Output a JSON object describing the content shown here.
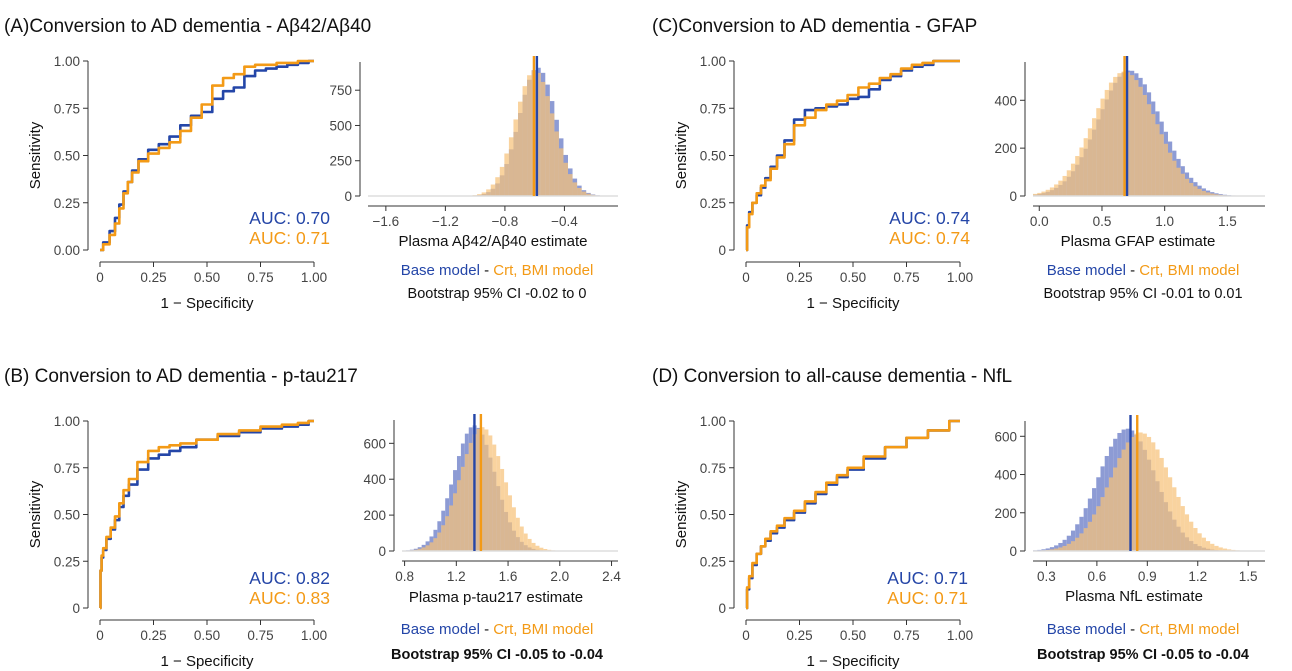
{
  "colors": {
    "base": "#2446a8",
    "crt": "#f39a16",
    "base_hist": "#8796d2",
    "crt_hist": "#f7c27a",
    "axis": "#333333"
  },
  "panels": [
    {
      "title": "(A)Conversion to AD dementia - Aβ42/Aβ40",
      "auc_base": "AUC: 0.70",
      "auc_crt": "AUC: 0.71",
      "hist_xlabel": "Plasma Aβ42/Aβ40 estimate",
      "legend_base": "Base model",
      "legend_sep": " - ",
      "legend_crt": "Crt, BMI model",
      "ci": "Bootstrap 95% CI -0.02 to 0",
      "ci_bold": false
    },
    {
      "title": "(C)Conversion to AD dementia - GFAP",
      "auc_base": "AUC: 0.74",
      "auc_crt": "AUC: 0.74",
      "hist_xlabel": "Plasma GFAP estimate",
      "legend_base": "Base model",
      "legend_sep": " - ",
      "legend_crt": "Crt, BMI model",
      "ci": "Bootstrap 95% CI -0.01 to 0.01",
      "ci_bold": false
    },
    {
      "title": "(B) Conversion to AD dementia - p-tau217",
      "auc_base": "AUC: 0.82",
      "auc_crt": "AUC: 0.83",
      "hist_xlabel": "Plasma p-tau217 estimate",
      "legend_base": "Base model",
      "legend_sep": " - ",
      "legend_crt": "Crt, BMI model",
      "ci": "Bootstrap 95% CI -0.05 to -0.04",
      "ci_bold": true
    },
    {
      "title": "(D)   Conversion to all-cause dementia - NfL",
      "auc_base": "AUC: 0.71",
      "auc_crt": "AUC: 0.71",
      "hist_xlabel": "Plasma NfL estimate",
      "legend_base": "Base model",
      "legend_sep": " - ",
      "legend_crt": "Crt, BMI model",
      "ci": "Bootstrap 95% CI -0.05 to -0.04",
      "ci_bold": true
    }
  ],
  "chart_data": [
    {
      "type": "line",
      "panel": "A",
      "title": "",
      "xlabel": "1 − Specificity",
      "ylabel": "Sensitivity",
      "xlim": [
        0,
        1
      ],
      "ylim": [
        0,
        1
      ],
      "xticks": [
        "0",
        "0.25",
        "0.50",
        "0.75",
        "1.00"
      ],
      "yticks": [
        "0.00",
        "0.25",
        "0.50",
        "0.75",
        "1.00"
      ],
      "series": [
        {
          "name": "Base model",
          "x": [
            0,
            0.03,
            0.06,
            0.08,
            0.1,
            0.12,
            0.14,
            0.16,
            0.2,
            0.25,
            0.3,
            0.35,
            0.4,
            0.45,
            0.5,
            0.55,
            0.6,
            0.65,
            0.7,
            0.75,
            0.8,
            0.85,
            0.9,
            0.95,
            1
          ],
          "y": [
            0,
            0.04,
            0.1,
            0.17,
            0.24,
            0.31,
            0.36,
            0.42,
            0.48,
            0.53,
            0.56,
            0.6,
            0.66,
            0.71,
            0.73,
            0.8,
            0.84,
            0.86,
            0.92,
            0.95,
            0.96,
            0.97,
            0.98,
            0.99,
            1
          ]
        },
        {
          "name": "Crt, BMI model",
          "x": [
            0,
            0.03,
            0.06,
            0.08,
            0.1,
            0.12,
            0.14,
            0.16,
            0.2,
            0.25,
            0.3,
            0.35,
            0.4,
            0.45,
            0.5,
            0.55,
            0.6,
            0.65,
            0.7,
            0.75,
            0.8,
            0.85,
            0.9,
            0.95,
            1
          ],
          "y": [
            0,
            0.03,
            0.08,
            0.14,
            0.22,
            0.3,
            0.36,
            0.41,
            0.47,
            0.51,
            0.54,
            0.57,
            0.63,
            0.7,
            0.77,
            0.87,
            0.91,
            0.93,
            0.97,
            0.98,
            0.98,
            0.99,
            0.99,
            1,
            1
          ]
        }
      ]
    },
    {
      "type": "histogram",
      "panel": "A",
      "title": "",
      "xlabel": "Plasma Aβ42/Aβ40 estimate",
      "xlim": [
        -1.72,
        -0.04
      ],
      "ylim": [
        0,
        950
      ],
      "xticks": [
        -1.6,
        -1.2,
        -0.8,
        -0.4
      ],
      "xtick_labels": [
        "−1.6",
        "−1.2",
        "−0.8",
        "−0.4"
      ],
      "yticks": [
        0,
        250,
        500,
        750
      ],
      "ytick_labels": [
        "0",
        "250",
        "500",
        "750"
      ],
      "series": [
        {
          "name": "Base model",
          "mean": -0.58,
          "sd": 0.125,
          "peak": 910,
          "estimate": -0.585
        },
        {
          "name": "Crt, BMI model",
          "mean": -0.6,
          "sd": 0.128,
          "peak": 890,
          "estimate": -0.605
        }
      ]
    },
    {
      "type": "line",
      "panel": "C",
      "title": "",
      "xlabel": "1 − Specificity",
      "ylabel": "Sensitivity",
      "xlim": [
        0,
        1
      ],
      "ylim": [
        0,
        1
      ],
      "xticks": [
        "0",
        "0.25",
        "0.50",
        "0.75",
        "1.00"
      ],
      "yticks": [
        "0",
        "0.25",
        "0.50",
        "0.75",
        "1.00"
      ],
      "series": [
        {
          "name": "Base model",
          "x": [
            0,
            0.01,
            0.02,
            0.04,
            0.06,
            0.08,
            0.1,
            0.13,
            0.16,
            0.2,
            0.25,
            0.3,
            0.35,
            0.4,
            0.45,
            0.5,
            0.55,
            0.6,
            0.65,
            0.7,
            0.75,
            0.8,
            0.85,
            0.9,
            1
          ],
          "y": [
            0,
            0.13,
            0.2,
            0.25,
            0.29,
            0.33,
            0.38,
            0.44,
            0.5,
            0.58,
            0.69,
            0.74,
            0.75,
            0.76,
            0.77,
            0.8,
            0.81,
            0.85,
            0.9,
            0.92,
            0.95,
            0.97,
            0.98,
            1,
            1
          ]
        },
        {
          "name": "Crt, BMI model",
          "x": [
            0,
            0.01,
            0.02,
            0.04,
            0.06,
            0.08,
            0.1,
            0.13,
            0.16,
            0.2,
            0.25,
            0.3,
            0.35,
            0.4,
            0.45,
            0.5,
            0.55,
            0.6,
            0.65,
            0.7,
            0.75,
            0.8,
            0.85,
            0.9,
            1
          ],
          "y": [
            0,
            0.12,
            0.19,
            0.25,
            0.3,
            0.34,
            0.37,
            0.43,
            0.49,
            0.56,
            0.66,
            0.7,
            0.74,
            0.77,
            0.79,
            0.82,
            0.86,
            0.88,
            0.91,
            0.93,
            0.96,
            0.98,
            0.99,
            1,
            1
          ]
        }
      ]
    },
    {
      "type": "histogram",
      "panel": "C",
      "title": "",
      "xlabel": "Plasma GFAP estimate",
      "xlim": [
        -0.05,
        1.8
      ],
      "ylim": [
        0,
        560
      ],
      "xticks": [
        0,
        0.5,
        1,
        1.5
      ],
      "xtick_labels": [
        "0.0",
        "0.5",
        "1.0",
        "1.5"
      ],
      "yticks": [
        0,
        200,
        400
      ],
      "ytick_labels": [
        "0",
        "200",
        "400"
      ],
      "series": [
        {
          "name": "Base model",
          "mean": 0.72,
          "sd": 0.25,
          "peak": 525,
          "estimate": 0.7
        },
        {
          "name": "Crt, BMI model",
          "mean": 0.68,
          "sd": 0.25,
          "peak": 520,
          "estimate": 0.68
        }
      ]
    },
    {
      "type": "line",
      "panel": "B",
      "title": "",
      "xlabel": "1 − Specificity",
      "ylabel": "Sensitivity",
      "xlim": [
        0,
        1
      ],
      "ylim": [
        0,
        1
      ],
      "xticks": [
        "0",
        "0.25",
        "0.50",
        "0.75",
        "1.00"
      ],
      "yticks": [
        "0",
        "0.25",
        "0.50",
        "0.75",
        "1.00"
      ],
      "series": [
        {
          "name": "Base model",
          "x": [
            0,
            0.005,
            0.01,
            0.02,
            0.04,
            0.06,
            0.08,
            0.1,
            0.12,
            0.15,
            0.2,
            0.25,
            0.3,
            0.35,
            0.4,
            0.5,
            0.6,
            0.7,
            0.8,
            0.9,
            0.95,
            1
          ],
          "y": [
            0,
            0.2,
            0.27,
            0.31,
            0.37,
            0.42,
            0.47,
            0.54,
            0.6,
            0.66,
            0.74,
            0.8,
            0.82,
            0.84,
            0.86,
            0.9,
            0.92,
            0.94,
            0.96,
            0.97,
            0.98,
            1
          ]
        },
        {
          "name": "Crt, BMI model",
          "x": [
            0,
            0.005,
            0.01,
            0.02,
            0.04,
            0.06,
            0.08,
            0.1,
            0.12,
            0.15,
            0.2,
            0.25,
            0.3,
            0.35,
            0.4,
            0.5,
            0.6,
            0.7,
            0.8,
            0.9,
            0.95,
            1
          ],
          "y": [
            0,
            0.2,
            0.28,
            0.32,
            0.38,
            0.43,
            0.49,
            0.56,
            0.63,
            0.69,
            0.78,
            0.84,
            0.86,
            0.87,
            0.88,
            0.9,
            0.93,
            0.95,
            0.97,
            0.98,
            0.99,
            1
          ]
        }
      ]
    },
    {
      "type": "histogram",
      "panel": "B",
      "title": "",
      "xlabel": "Plasma p-tau217 estimate",
      "xlim": [
        0.78,
        2.45
      ],
      "ylim": [
        0,
        730
      ],
      "xticks": [
        0.8,
        1.2,
        1.6,
        2.0,
        2.4
      ],
      "xtick_labels": [
        "0.8",
        "1.2",
        "1.6",
        "2.0",
        "2.4"
      ],
      "yticks": [
        0,
        200,
        400,
        600
      ],
      "ytick_labels": [
        "0",
        "200",
        "400",
        "600"
      ],
      "series": [
        {
          "name": "Base model",
          "mean": 1.34,
          "sd": 0.16,
          "peak": 700,
          "estimate": 1.34
        },
        {
          "name": "Crt, BMI model",
          "mean": 1.4,
          "sd": 0.17,
          "peak": 690,
          "estimate": 1.39
        }
      ]
    },
    {
      "type": "line",
      "panel": "D",
      "title": "",
      "xlabel": "1 − Specificity",
      "ylabel": "Sensitivity",
      "xlim": [
        0,
        1
      ],
      "ylim": [
        0,
        1
      ],
      "xticks": [
        "0",
        "0.25",
        "0.50",
        "0.75",
        "1.00"
      ],
      "yticks": [
        "0",
        "0.25",
        "0.50",
        "0.75",
        "1.00"
      ],
      "series": [
        {
          "name": "Base model",
          "x": [
            0,
            0.01,
            0.02,
            0.04,
            0.06,
            0.08,
            0.1,
            0.13,
            0.16,
            0.2,
            0.25,
            0.3,
            0.35,
            0.4,
            0.45,
            0.5,
            0.6,
            0.7,
            0.8,
            0.9,
            1
          ],
          "y": [
            0,
            0.1,
            0.16,
            0.23,
            0.29,
            0.33,
            0.36,
            0.4,
            0.43,
            0.47,
            0.51,
            0.56,
            0.61,
            0.66,
            0.7,
            0.74,
            0.8,
            0.86,
            0.91,
            0.95,
            1
          ]
        },
        {
          "name": "Crt, BMI model",
          "x": [
            0,
            0.01,
            0.02,
            0.04,
            0.06,
            0.08,
            0.1,
            0.13,
            0.16,
            0.2,
            0.25,
            0.3,
            0.35,
            0.4,
            0.45,
            0.5,
            0.6,
            0.7,
            0.8,
            0.9,
            1
          ],
          "y": [
            0,
            0.11,
            0.17,
            0.24,
            0.29,
            0.33,
            0.37,
            0.41,
            0.44,
            0.48,
            0.52,
            0.57,
            0.62,
            0.67,
            0.71,
            0.75,
            0.81,
            0.86,
            0.91,
            0.95,
            1
          ]
        }
      ]
    },
    {
      "type": "histogram",
      "panel": "D",
      "title": "",
      "xlabel": "Plasma NfL estimate",
      "xlim": [
        0.22,
        1.6
      ],
      "ylim": [
        0,
        680
      ],
      "xticks": [
        0.3,
        0.6,
        0.9,
        1.2,
        1.5
      ],
      "xtick_labels": [
        "0.3",
        "0.6",
        "0.9",
        "1.2",
        "1.5"
      ],
      "yticks": [
        0,
        200,
        400,
        600
      ],
      "ytick_labels": [
        "0",
        "200",
        "400",
        "600"
      ],
      "series": [
        {
          "name": "Base model",
          "mean": 0.78,
          "sd": 0.17,
          "peak": 640,
          "estimate": 0.8
        },
        {
          "name": "Crt, BMI model",
          "mean": 0.86,
          "sd": 0.18,
          "peak": 620,
          "estimate": 0.84
        }
      ]
    }
  ]
}
